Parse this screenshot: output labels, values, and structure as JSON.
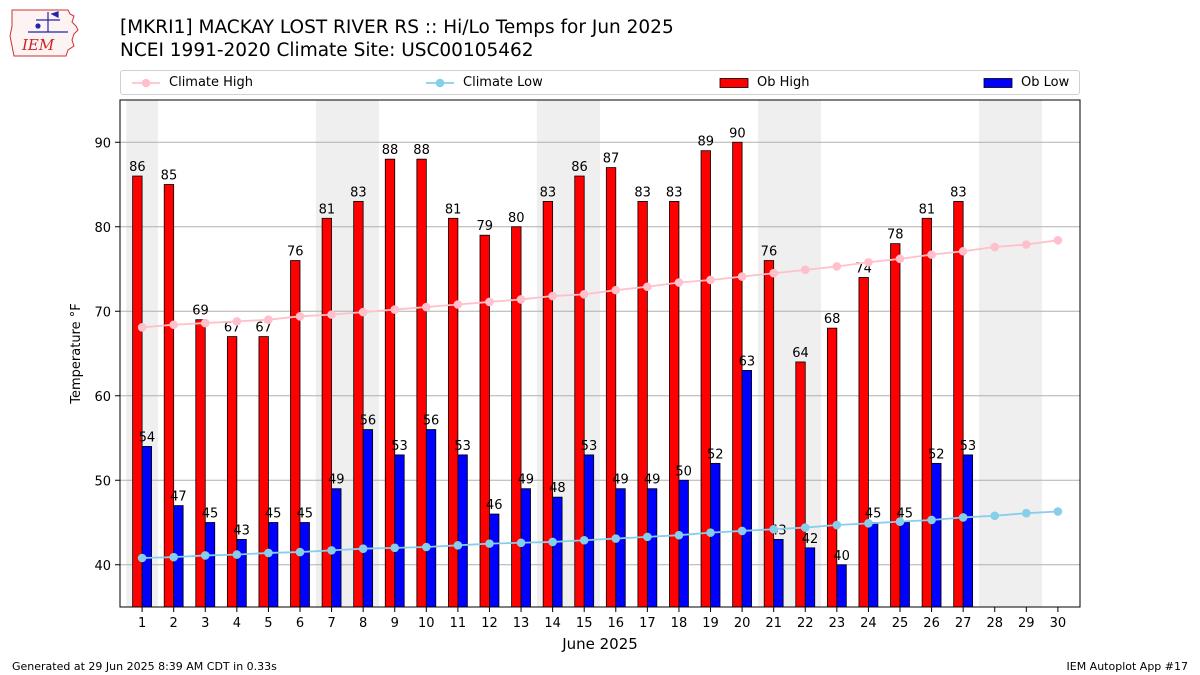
{
  "header": {
    "title_line1": "[MKRI1] MACKAY LOST RIVER RS :: Hi/Lo Temps for Jun 2025",
    "title_line2": "NCEI 1991-2020 Climate Site: USC00105462",
    "logo_text": "IEM"
  },
  "legend": {
    "items": [
      {
        "label": "Climate High",
        "kind": "line",
        "color": "#ffc0cb"
      },
      {
        "label": "Climate Low",
        "kind": "line",
        "color": "#87ceeb"
      },
      {
        "label": "Ob High",
        "kind": "bar",
        "color": "#ff0000"
      },
      {
        "label": "Ob Low",
        "kind": "bar",
        "color": "#0000ff"
      }
    ],
    "placement": "top"
  },
  "footer": {
    "left": "Generated at 29 Jun 2025 8:39 AM CDT in 0.33s",
    "right": "IEM Autoplot App #17"
  },
  "chart_data": {
    "type": "bar",
    "xlabel": "June 2025",
    "ylabel": "Temperature °F",
    "ylim": [
      35,
      95
    ],
    "yticks": [
      40,
      50,
      60,
      70,
      80,
      90
    ],
    "grid": "horizontal",
    "categories": [
      "1",
      "2",
      "3",
      "4",
      "5",
      "6",
      "7",
      "8",
      "9",
      "10",
      "11",
      "12",
      "13",
      "14",
      "15",
      "16",
      "17",
      "18",
      "19",
      "20",
      "21",
      "22",
      "23",
      "24",
      "25",
      "26",
      "27",
      "28",
      "29",
      "30"
    ],
    "weekend_shading": [
      [
        1,
        1
      ],
      [
        7,
        8
      ],
      [
        14,
        15
      ],
      [
        21,
        22
      ],
      [
        28,
        29
      ]
    ],
    "series": [
      {
        "name": "Ob High",
        "type": "bar",
        "color": "#ff0000",
        "values": [
          86,
          85,
          69,
          67,
          67,
          76,
          81,
          83,
          88,
          88,
          81,
          79,
          80,
          83,
          86,
          87,
          83,
          83,
          89,
          90,
          76,
          64,
          68,
          74,
          78,
          81,
          83,
          null,
          null,
          null
        ]
      },
      {
        "name": "Ob Low",
        "type": "bar",
        "color": "#0000ff",
        "values": [
          54,
          47,
          45,
          43,
          45,
          45,
          49,
          56,
          53,
          56,
          53,
          46,
          49,
          48,
          53,
          49,
          49,
          50,
          52,
          63,
          43,
          42,
          40,
          45,
          45,
          52,
          53,
          null,
          null,
          null
        ]
      },
      {
        "name": "Climate High",
        "type": "line",
        "color": "#ffc0cb",
        "values": [
          68.1,
          68.4,
          68.6,
          68.8,
          69.0,
          69.4,
          69.6,
          69.9,
          70.2,
          70.5,
          70.8,
          71.1,
          71.4,
          71.8,
          72.0,
          72.5,
          72.9,
          73.4,
          73.7,
          74.1,
          74.5,
          74.9,
          75.3,
          75.8,
          76.2,
          76.7,
          77.1,
          77.6,
          77.9,
          78.4
        ]
      },
      {
        "name": "Climate Low",
        "type": "line",
        "color": "#87ceeb",
        "values": [
          40.8,
          40.9,
          41.1,
          41.2,
          41.4,
          41.5,
          41.7,
          41.9,
          42.0,
          42.1,
          42.3,
          42.5,
          42.6,
          42.7,
          42.9,
          43.1,
          43.3,
          43.5,
          43.8,
          44.0,
          44.2,
          44.4,
          44.7,
          44.9,
          45.1,
          45.3,
          45.6,
          45.8,
          46.1,
          46.3
        ]
      }
    ]
  }
}
